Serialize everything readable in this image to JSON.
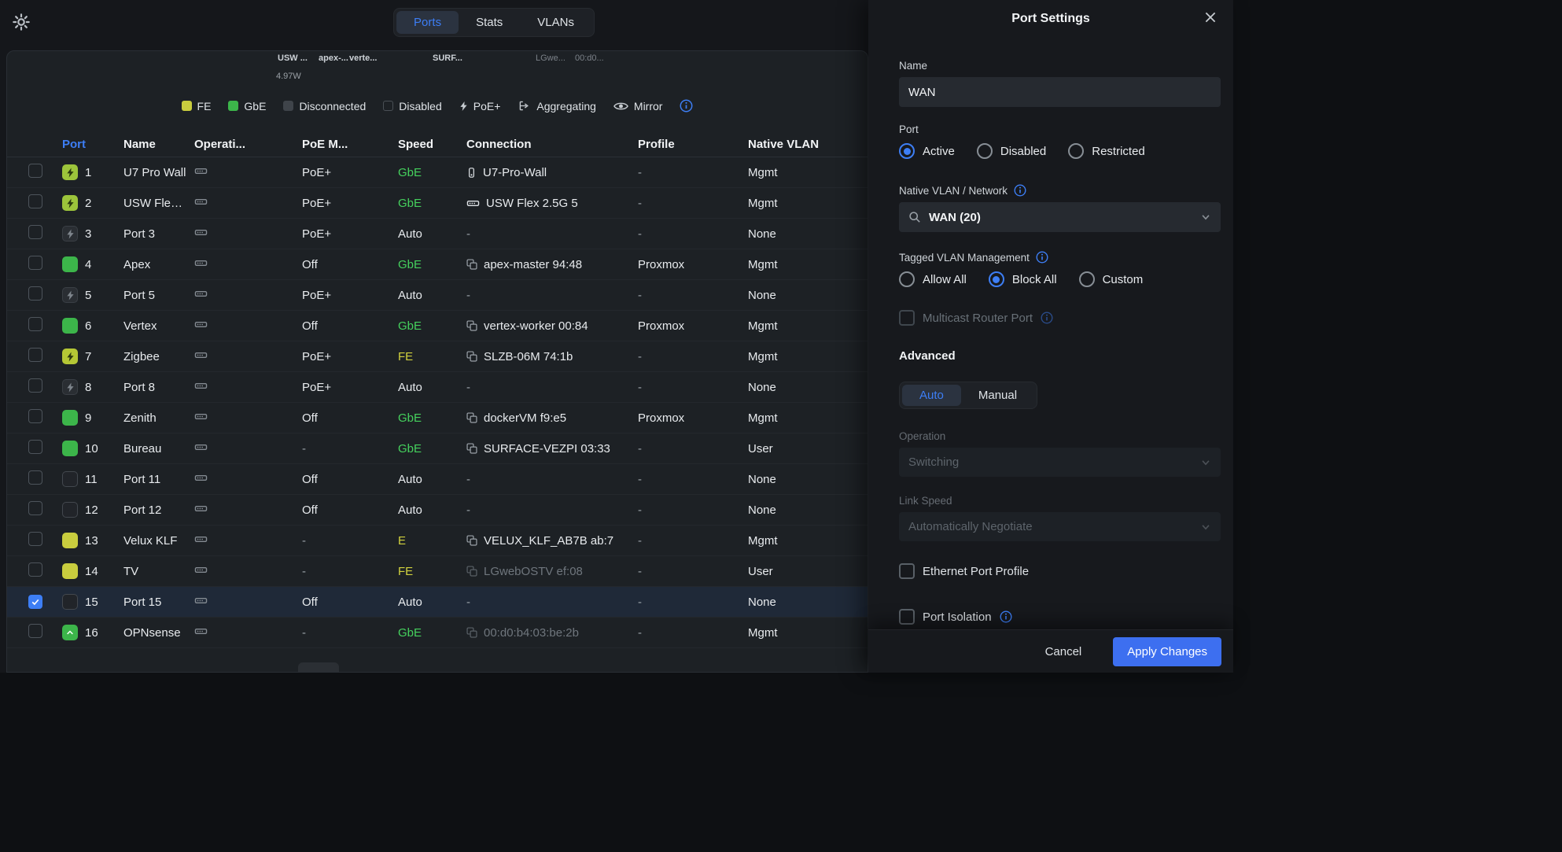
{
  "colors": {
    "accent_blue": "#3d7ef5",
    "green": "#3cb54a",
    "green_text": "#45d15d",
    "yellow": "#c9cd3e",
    "yellow_text": "#d2d23e",
    "poe_active": "#9cc43b",
    "selected_row": "#1f2938",
    "apply_button": "#3d6ff0"
  },
  "topbar": {
    "tabs": [
      {
        "label": "Ports",
        "active": true
      },
      {
        "label": "Stats",
        "active": false
      },
      {
        "label": "VLANs",
        "active": false
      }
    ]
  },
  "visualization": {
    "labels": [
      "USW ...",
      "apex-...",
      "verte...",
      "SURF...",
      "LGwe...",
      "00:d0..."
    ],
    "power": "4.97W"
  },
  "legend": {
    "items": [
      {
        "label": "FE"
      },
      {
        "label": "GbE"
      },
      {
        "label": "Disconnected"
      },
      {
        "label": "Disabled"
      },
      {
        "label": "PoE+"
      },
      {
        "label": "Aggregating"
      },
      {
        "label": "Mirror"
      }
    ]
  },
  "table": {
    "headers": [
      "Port",
      "Name",
      "Operati...",
      "PoE M...",
      "Speed",
      "Connection",
      "Profile",
      "Native VLAN"
    ],
    "rows": [
      {
        "num": 1,
        "checked": false,
        "selected": false,
        "icon": {
          "type": "bolt-active",
          "color": "#9cc43b"
        },
        "name": "U7 Pro Wall",
        "poe": "PoE+",
        "speed": "GbE",
        "speed_color": "green",
        "conn": {
          "icon": "ap",
          "text": "U7-Pro-Wall",
          "dim": false
        },
        "profile": "-",
        "vlan": "Mgmt"
      },
      {
        "num": 2,
        "checked": false,
        "selected": false,
        "icon": {
          "type": "bolt-active",
          "color": "#9cc43b"
        },
        "name": "USW Flex ...",
        "poe": "PoE+",
        "speed": "GbE",
        "speed_color": "green",
        "conn": {
          "icon": "switch",
          "text": "USW Flex 2.5G 5",
          "dim": false
        },
        "profile": "-",
        "vlan": "Mgmt"
      },
      {
        "num": 3,
        "checked": false,
        "selected": false,
        "icon": {
          "type": "bolt-off"
        },
        "name": "Port 3",
        "poe": "PoE+",
        "speed": "Auto",
        "speed_color": "plain",
        "conn": {
          "icon": null,
          "text": "-",
          "dim": false
        },
        "profile": "-",
        "vlan": "None"
      },
      {
        "num": 4,
        "checked": false,
        "selected": false,
        "icon": {
          "type": "solid",
          "color": "#3cb54a"
        },
        "name": "Apex",
        "poe": "Off",
        "speed": "GbE",
        "speed_color": "green",
        "conn": {
          "icon": "vm",
          "text": "apex-master 94:48",
          "dim": false
        },
        "profile": "Proxmox",
        "vlan": "Mgmt"
      },
      {
        "num": 5,
        "checked": false,
        "selected": false,
        "icon": {
          "type": "bolt-off"
        },
        "name": "Port 5",
        "poe": "PoE+",
        "speed": "Auto",
        "speed_color": "plain",
        "conn": {
          "icon": null,
          "text": "-",
          "dim": false
        },
        "profile": "-",
        "vlan": "None"
      },
      {
        "num": 6,
        "checked": false,
        "selected": false,
        "icon": {
          "type": "solid",
          "color": "#3cb54a"
        },
        "name": "Vertex",
        "poe": "Off",
        "speed": "GbE",
        "speed_color": "green",
        "conn": {
          "icon": "vm",
          "text": "vertex-worker 00:84",
          "dim": false
        },
        "profile": "Proxmox",
        "vlan": "Mgmt"
      },
      {
        "num": 7,
        "checked": false,
        "selected": false,
        "icon": {
          "type": "bolt-active",
          "color": "#b5c735"
        },
        "name": "Zigbee",
        "poe": "PoE+",
        "speed": "FE",
        "speed_color": "yellow",
        "conn": {
          "icon": "vm",
          "text": "SLZB-06M 74:1b",
          "dim": false
        },
        "profile": "-",
        "vlan": "Mgmt"
      },
      {
        "num": 8,
        "checked": false,
        "selected": false,
        "icon": {
          "type": "bolt-off"
        },
        "name": "Port 8",
        "poe": "PoE+",
        "speed": "Auto",
        "speed_color": "plain",
        "conn": {
          "icon": null,
          "text": "-",
          "dim": false
        },
        "profile": "-",
        "vlan": "None"
      },
      {
        "num": 9,
        "checked": false,
        "selected": false,
        "icon": {
          "type": "solid",
          "color": "#3cb54a"
        },
        "name": "Zenith",
        "poe": "Off",
        "speed": "GbE",
        "speed_color": "green",
        "conn": {
          "icon": "vm",
          "text": "dockerVM f9:e5",
          "dim": false
        },
        "profile": "Proxmox",
        "vlan": "Mgmt"
      },
      {
        "num": 10,
        "checked": false,
        "selected": false,
        "icon": {
          "type": "solid",
          "color": "#3cb54a"
        },
        "name": "Bureau",
        "poe": "-",
        "speed": "GbE",
        "speed_color": "green",
        "conn": {
          "icon": "vm",
          "text": "SURFACE-VEZPI 03:33",
          "dim": false
        },
        "profile": "-",
        "vlan": "User"
      },
      {
        "num": 11,
        "checked": false,
        "selected": false,
        "icon": {
          "type": "empty"
        },
        "name": "Port 11",
        "poe": "Off",
        "speed": "Auto",
        "speed_color": "plain",
        "conn": {
          "icon": null,
          "text": "-",
          "dim": false
        },
        "profile": "-",
        "vlan": "None"
      },
      {
        "num": 12,
        "checked": false,
        "selected": false,
        "icon": {
          "type": "empty"
        },
        "name": "Port 12",
        "poe": "Off",
        "speed": "Auto",
        "speed_color": "plain",
        "conn": {
          "icon": null,
          "text": "-",
          "dim": false
        },
        "profile": "-",
        "vlan": "None"
      },
      {
        "num": 13,
        "checked": false,
        "selected": false,
        "icon": {
          "type": "solid",
          "color": "#c9cd3e"
        },
        "name": "Velux KLF",
        "poe": "-",
        "speed": "E",
        "speed_color": "yellow",
        "conn": {
          "icon": "vm",
          "text": "VELUX_KLF_AB7B ab:7",
          "dim": false
        },
        "profile": "-",
        "vlan": "Mgmt"
      },
      {
        "num": 14,
        "checked": false,
        "selected": false,
        "icon": {
          "type": "solid",
          "color": "#c9cd3e"
        },
        "name": "TV",
        "poe": "-",
        "speed": "FE",
        "speed_color": "yellow",
        "conn": {
          "icon": "vm",
          "text": "LGwebOSTV ef:08",
          "dim": true
        },
        "profile": "-",
        "vlan": "User"
      },
      {
        "num": 15,
        "checked": true,
        "selected": true,
        "icon": {
          "type": "empty"
        },
        "name": "Port 15",
        "poe": "Off",
        "speed": "Auto",
        "speed_color": "plain",
        "conn": {
          "icon": null,
          "text": "-",
          "dim": false
        },
        "profile": "-",
        "vlan": "None"
      },
      {
        "num": 16,
        "checked": false,
        "selected": false,
        "icon": {
          "type": "agg",
          "color": "#3cb54a"
        },
        "name": "OPNsense",
        "poe": "-",
        "speed": "GbE",
        "speed_color": "green",
        "conn": {
          "icon": "vm",
          "text": "00:d0:b4:03:be:2b",
          "dim": true
        },
        "profile": "-",
        "vlan": "Mgmt"
      }
    ]
  },
  "panel": {
    "title": "Port Settings",
    "name_label": "Name",
    "name_value": "WAN",
    "port_label": "Port",
    "port_options": [
      {
        "label": "Active",
        "selected": true
      },
      {
        "label": "Disabled",
        "selected": false
      },
      {
        "label": "Restricted",
        "selected": false
      }
    ],
    "native_vlan_label": "Native VLAN / Network",
    "native_vlan_value": "WAN (20)",
    "tagged_label": "Tagged VLAN Management",
    "tagged_options": [
      {
        "label": "Allow All",
        "selected": false
      },
      {
        "label": "Block All",
        "selected": true
      },
      {
        "label": "Custom",
        "selected": false
      }
    ],
    "multicast_label": "Multicast Router Port",
    "advanced_label": "Advanced",
    "advanced_tabs": [
      {
        "label": "Auto",
        "active": true
      },
      {
        "label": "Manual",
        "active": false
      }
    ],
    "operation_label": "Operation",
    "operation_value": "Switching",
    "link_speed_label": "Link Speed",
    "link_speed_value": "Automatically Negotiate",
    "ethernet_profile_label": "Ethernet Port Profile",
    "port_isolation_label": "Port Isolation",
    "cancel_label": "Cancel",
    "apply_label": "Apply Changes"
  }
}
